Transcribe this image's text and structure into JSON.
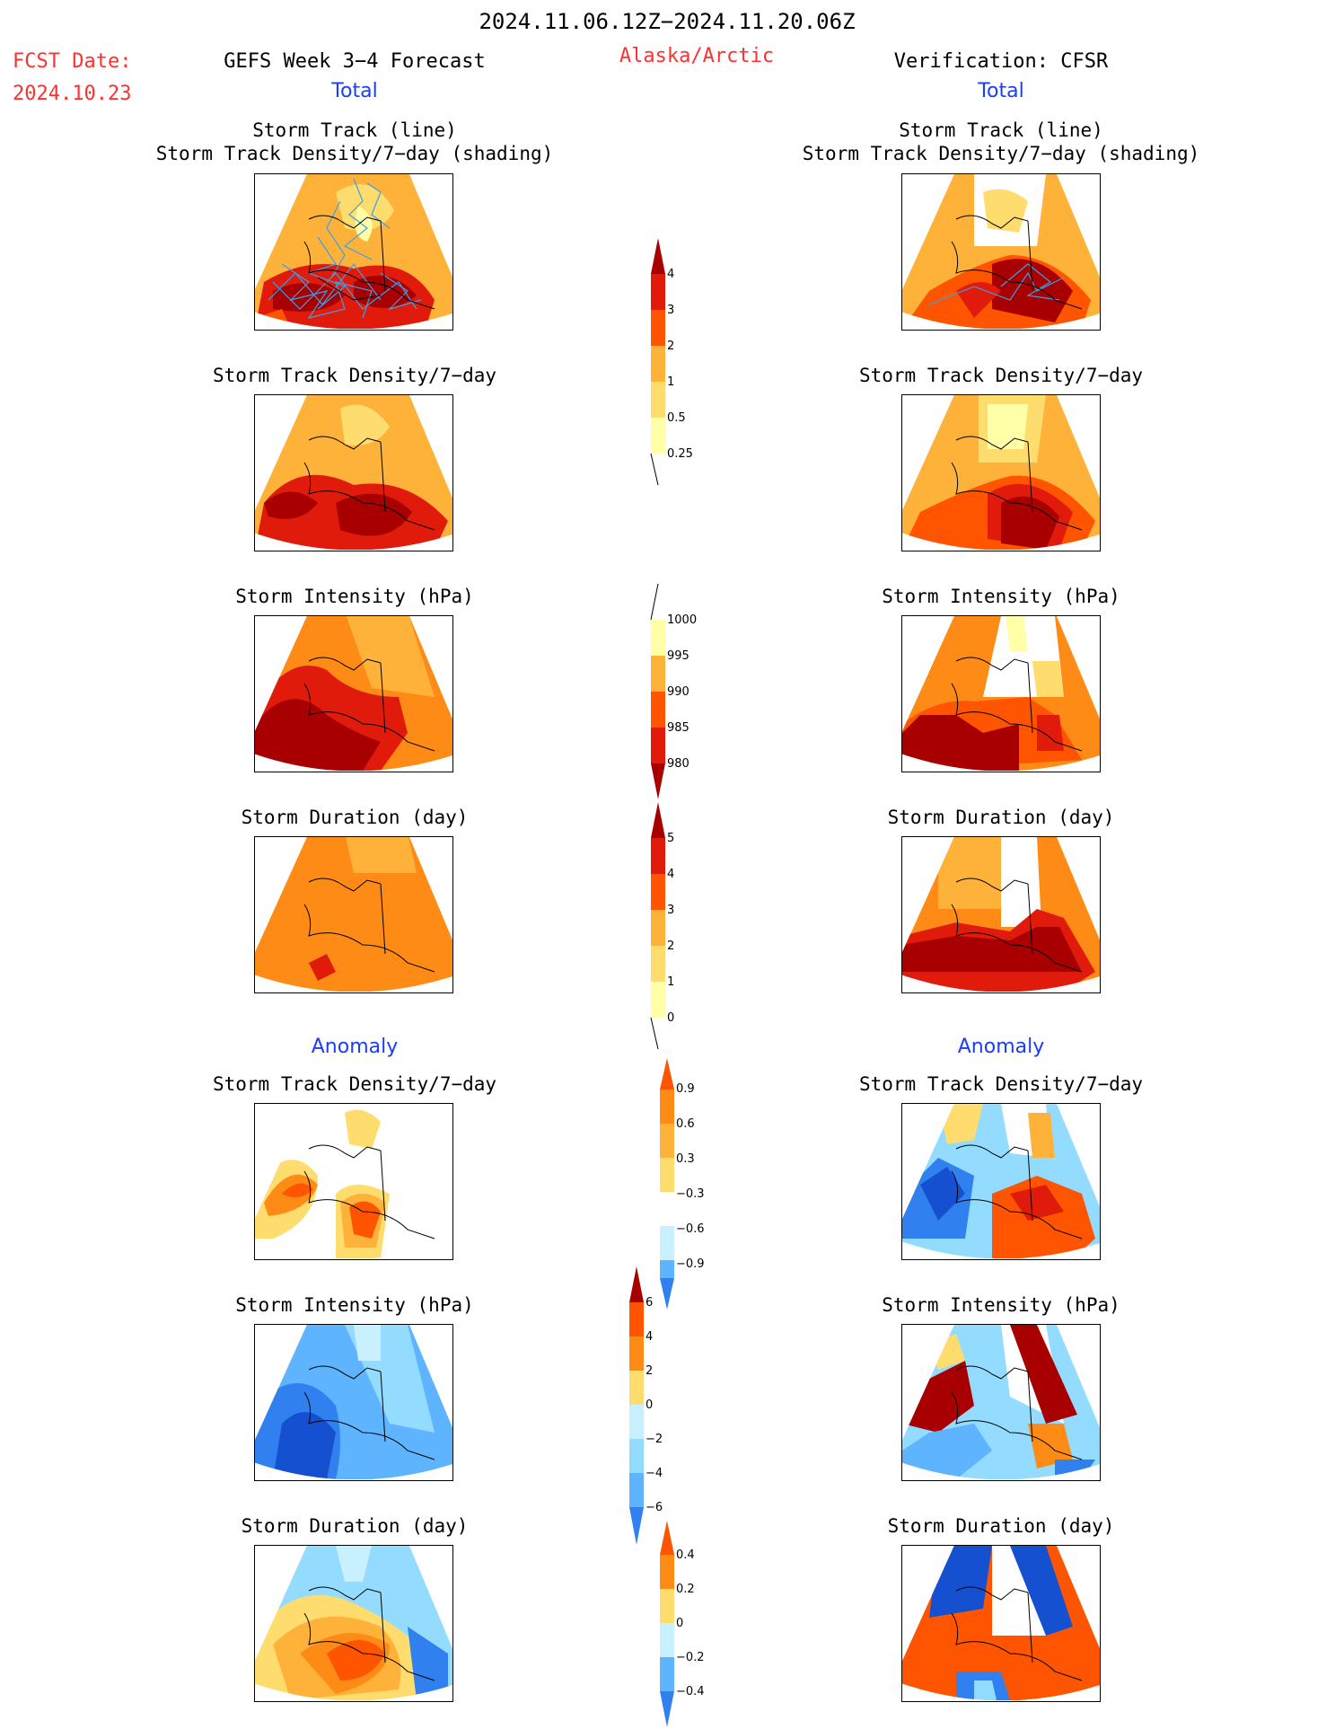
{
  "header": {
    "date_range": "2024.11.06.12Z−2024.11.20.06Z",
    "fcst_label": "FCST Date:",
    "fcst_date": "2024.10.23",
    "left_title": "GEFS Week 3−4 Forecast",
    "region": "Alaska/Arctic",
    "right_title": "Verification: CFSR",
    "total": "Total",
    "anomaly": "Anomaly"
  },
  "panels": {
    "track_line": "Storm Track (line)",
    "track_shading": "Storm Track Density/7−day (shading)",
    "density": "Storm Track Density/7−day",
    "intensity": "Storm Intensity (hPa)",
    "duration": "Storm Duration (day)"
  },
  "colorbars": {
    "density": [
      "4",
      "3",
      "2",
      "1",
      "0.5",
      "0.25"
    ],
    "intensity": [
      "1000",
      "995",
      "990",
      "985",
      "980"
    ],
    "duration": [
      "5",
      "4",
      "3",
      "2",
      "1",
      "0"
    ],
    "density_anom": [
      "0.9",
      "0.6",
      "0.3",
      "−0.3",
      "−0.6",
      "−0.9"
    ],
    "intensity_anom": [
      "6",
      "4",
      "2",
      "0",
      "−2",
      "−4",
      "−6"
    ],
    "duration_anom": [
      "0.4",
      "0.2",
      "0",
      "−0.2",
      "−0.4"
    ]
  },
  "colors": {
    "warm": [
      "#ffffa8",
      "#ffdc6e",
      "#ffb23a",
      "#ff8b17",
      "#ff5400",
      "#e11b0c",
      "#a80000"
    ],
    "cool": [
      "#c8f0ff",
      "#94dcff",
      "#5eb4ff",
      "#3080f0",
      "#1450d0"
    ],
    "title_red": "#ff3030",
    "title_blue": "#1a3cff",
    "track_line": "#3aa0e8"
  }
}
